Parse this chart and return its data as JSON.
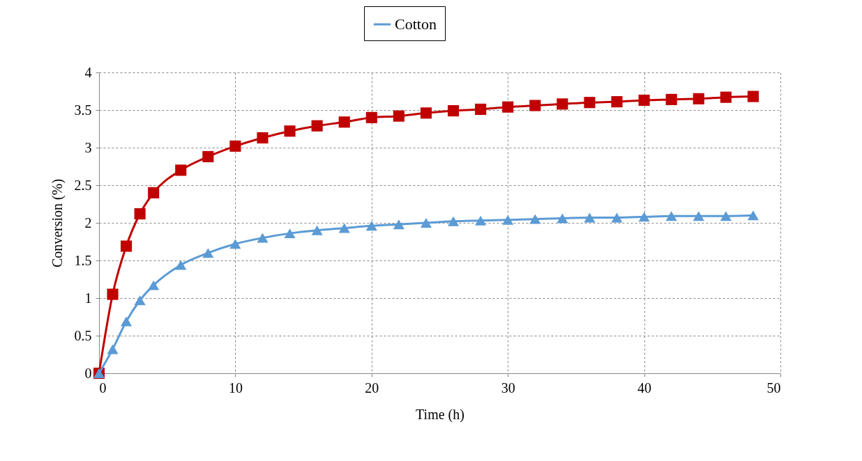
{
  "chart_data": {
    "type": "line",
    "xlabel": "Time (h)",
    "ylabel": "Conversion (%)",
    "x": [
      0,
      1,
      2,
      3,
      4,
      6,
      8,
      10,
      12,
      14,
      16,
      18,
      20,
      22,
      24,
      26,
      28,
      30,
      32,
      34,
      36,
      38,
      40,
      42,
      44,
      46,
      48
    ],
    "series": [
      {
        "color": "#c00000",
        "marker": "square",
        "values": [
          0,
          1.05,
          1.69,
          2.12,
          2.4,
          2.7,
          2.88,
          3.02,
          3.13,
          3.22,
          3.29,
          3.34,
          3.4,
          3.42,
          3.46,
          3.49,
          3.51,
          3.54,
          3.56,
          3.58,
          3.6,
          3.61,
          3.63,
          3.64,
          3.65,
          3.67,
          3.68
        ]
      },
      {
        "name": "Cotton",
        "color": "#5b9bd5",
        "marker": "triangle",
        "values": [
          0,
          0.32,
          0.69,
          0.97,
          1.17,
          1.44,
          1.6,
          1.72,
          1.8,
          1.86,
          1.9,
          1.93,
          1.96,
          1.98,
          2,
          2.02,
          2.03,
          2.04,
          2.05,
          2.06,
          2.07,
          2.07,
          2.08,
          2.09,
          2.09,
          2.09,
          2.1
        ]
      }
    ],
    "xlim": [
      0,
      50
    ],
    "xticks": [
      0,
      10,
      20,
      30,
      40,
      50
    ],
    "ylim": [
      0,
      4
    ],
    "yticks": [
      0,
      0.5,
      1,
      1.5,
      2,
      2.5,
      3,
      3.5,
      4
    ],
    "grid": true,
    "legend": "top",
    "line_style": "solid"
  }
}
